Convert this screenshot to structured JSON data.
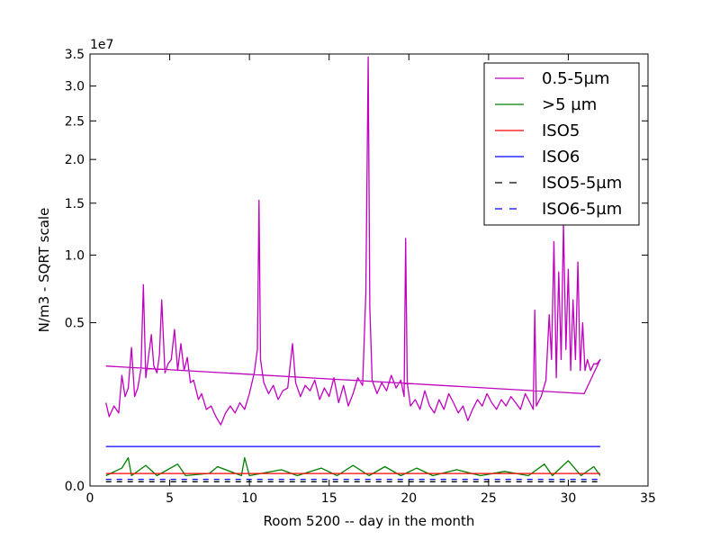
{
  "chart_data": {
    "type": "line",
    "title": "",
    "xlabel": "Room 5200 -- day in the month",
    "ylabel": "N/m3 - SQRT scale",
    "y_scale": "sqrt",
    "y_offset_label": "1e7",
    "xlim": [
      0,
      35
    ],
    "ylim": [
      0,
      35000000
    ],
    "x_ticks": [
      0,
      5,
      10,
      15,
      20,
      25,
      30,
      35
    ],
    "x_tick_labels": [
      "0",
      "5",
      "10",
      "15",
      "20",
      "25",
      "30",
      "35"
    ],
    "y_ticks": [
      0,
      5000000,
      10000000,
      15000000,
      20000000,
      25000000,
      30000000,
      35000000
    ],
    "y_tick_labels": [
      "0.0",
      "0.5",
      "1.0",
      "1.5",
      "2.0",
      "2.5",
      "3.0",
      "3.5"
    ],
    "grid": false,
    "legend_position": "top-right",
    "series": [
      {
        "name": "0.5-5µm",
        "color": "#bf00bf",
        "style": "solid",
        "points": [
          [
            1.0,
            1300000
          ],
          [
            1.2,
            900000
          ],
          [
            1.5,
            1200000
          ],
          [
            1.8,
            1000000
          ],
          [
            2.0,
            2300000
          ],
          [
            2.2,
            1500000
          ],
          [
            2.4,
            1800000
          ],
          [
            2.6,
            3600000
          ],
          [
            2.8,
            1500000
          ],
          [
            3.0,
            1800000
          ],
          [
            3.2,
            2600000
          ],
          [
            3.35,
            7600000
          ],
          [
            3.5,
            2200000
          ],
          [
            3.7,
            3300000
          ],
          [
            3.85,
            4300000
          ],
          [
            4.0,
            2700000
          ],
          [
            4.2,
            2400000
          ],
          [
            4.35,
            3200000
          ],
          [
            4.5,
            6500000
          ],
          [
            4.7,
            2400000
          ],
          [
            4.9,
            2800000
          ],
          [
            5.1,
            3000000
          ],
          [
            5.3,
            4600000
          ],
          [
            5.5,
            2500000
          ],
          [
            5.7,
            3800000
          ],
          [
            5.9,
            2500000
          ],
          [
            6.1,
            3100000
          ],
          [
            6.3,
            2000000
          ],
          [
            6.5,
            2100000
          ],
          [
            6.8,
            1400000
          ],
          [
            7.0,
            1600000
          ],
          [
            7.3,
            1100000
          ],
          [
            7.6,
            1200000
          ],
          [
            7.9,
            900000
          ],
          [
            8.2,
            700000
          ],
          [
            8.5,
            1000000
          ],
          [
            8.8,
            1200000
          ],
          [
            9.1,
            1000000
          ],
          [
            9.4,
            1300000
          ],
          [
            9.7,
            1100000
          ],
          [
            10.0,
            1600000
          ],
          [
            10.3,
            2400000
          ],
          [
            10.5,
            3500000
          ],
          [
            10.6,
            15300000
          ],
          [
            10.7,
            3000000
          ],
          [
            10.9,
            2000000
          ],
          [
            11.2,
            1600000
          ],
          [
            11.5,
            1900000
          ],
          [
            11.8,
            1400000
          ],
          [
            12.1,
            1700000
          ],
          [
            12.4,
            1800000
          ],
          [
            12.7,
            3800000
          ],
          [
            12.9,
            2000000
          ],
          [
            13.2,
            1500000
          ],
          [
            13.5,
            1900000
          ],
          [
            13.8,
            1700000
          ],
          [
            14.1,
            2100000
          ],
          [
            14.4,
            1400000
          ],
          [
            14.7,
            1800000
          ],
          [
            15.0,
            1500000
          ],
          [
            15.3,
            2200000
          ],
          [
            15.6,
            1300000
          ],
          [
            15.9,
            1900000
          ],
          [
            16.2,
            1200000
          ],
          [
            16.5,
            1600000
          ],
          [
            16.8,
            2200000
          ],
          [
            17.1,
            1900000
          ],
          [
            17.3,
            7000000
          ],
          [
            17.45,
            34500000
          ],
          [
            17.55,
            6000000
          ],
          [
            17.7,
            2100000
          ],
          [
            18.0,
            1600000
          ],
          [
            18.3,
            2000000
          ],
          [
            18.6,
            1700000
          ],
          [
            18.9,
            2300000
          ],
          [
            19.2,
            1800000
          ],
          [
            19.5,
            2100000
          ],
          [
            19.7,
            1500000
          ],
          [
            19.8,
            11500000
          ],
          [
            19.9,
            2000000
          ],
          [
            20.1,
            1200000
          ],
          [
            20.4,
            1400000
          ],
          [
            20.7,
            1100000
          ],
          [
            21.0,
            1700000
          ],
          [
            21.3,
            1200000
          ],
          [
            21.6,
            1000000
          ],
          [
            21.9,
            1400000
          ],
          [
            22.2,
            1100000
          ],
          [
            22.5,
            1600000
          ],
          [
            22.8,
            1300000
          ],
          [
            23.1,
            1000000
          ],
          [
            23.4,
            1200000
          ],
          [
            23.7,
            800000
          ],
          [
            24.0,
            1100000
          ],
          [
            24.3,
            1400000
          ],
          [
            24.6,
            1200000
          ],
          [
            24.9,
            1600000
          ],
          [
            25.2,
            1300000
          ],
          [
            25.5,
            1100000
          ],
          [
            25.8,
            1400000
          ],
          [
            26.1,
            1200000
          ],
          [
            26.4,
            1500000
          ],
          [
            26.7,
            1300000
          ],
          [
            27.0,
            1100000
          ],
          [
            27.3,
            1600000
          ],
          [
            27.6,
            1300000
          ],
          [
            27.8,
            1100000
          ],
          [
            27.9,
            5800000
          ],
          [
            28.0,
            1200000
          ],
          [
            28.3,
            1500000
          ],
          [
            28.6,
            2100000
          ],
          [
            28.8,
            5500000
          ],
          [
            28.95,
            3000000
          ],
          [
            29.1,
            11200000
          ],
          [
            29.25,
            2200000
          ],
          [
            29.4,
            8600000
          ],
          [
            29.55,
            3000000
          ],
          [
            29.7,
            12900000
          ],
          [
            29.85,
            3500000
          ],
          [
            30.0,
            8800000
          ],
          [
            30.15,
            2500000
          ],
          [
            30.3,
            6500000
          ],
          [
            30.45,
            3000000
          ],
          [
            30.6,
            9400000
          ],
          [
            30.75,
            2500000
          ],
          [
            30.9,
            5000000
          ],
          [
            31.05,
            2500000
          ],
          [
            31.2,
            3000000
          ],
          [
            31.4,
            2500000
          ],
          [
            31.6,
            2800000
          ],
          [
            31.8,
            2800000
          ],
          [
            32.0,
            3000000
          ],
          [
            31.0,
            1600000
          ],
          [
            1.0,
            2700000
          ]
        ]
      },
      {
        "name": ">5 µm",
        "color": "#008000",
        "style": "solid",
        "points": [
          [
            1.0,
            20000
          ],
          [
            2.0,
            60000
          ],
          [
            2.4,
            150000
          ],
          [
            2.6,
            20000
          ],
          [
            3.5,
            80000
          ],
          [
            4.2,
            20000
          ],
          [
            5.5,
            90000
          ],
          [
            6.0,
            20000
          ],
          [
            7.5,
            30000
          ],
          [
            8.0,
            70000
          ],
          [
            9.5,
            20000
          ],
          [
            9.7,
            150000
          ],
          [
            10.0,
            20000
          ],
          [
            12.0,
            50000
          ],
          [
            13.0,
            20000
          ],
          [
            14.5,
            60000
          ],
          [
            15.5,
            20000
          ],
          [
            16.5,
            80000
          ],
          [
            17.5,
            20000
          ],
          [
            18.5,
            70000
          ],
          [
            19.5,
            20000
          ],
          [
            20.5,
            60000
          ],
          [
            21.5,
            20000
          ],
          [
            23.0,
            50000
          ],
          [
            24.5,
            20000
          ],
          [
            26.0,
            40000
          ],
          [
            27.5,
            20000
          ],
          [
            28.5,
            90000
          ],
          [
            29.0,
            20000
          ],
          [
            30.0,
            120000
          ],
          [
            30.8,
            20000
          ],
          [
            31.6,
            70000
          ],
          [
            32.0,
            20000
          ]
        ]
      },
      {
        "name": "ISO5",
        "color": "#ff0000",
        "style": "solid",
        "points": [
          [
            1.0,
            29300
          ],
          [
            32.0,
            29300
          ]
        ]
      },
      {
        "name": "ISO6",
        "color": "#0000ff",
        "style": "solid",
        "points": [
          [
            1.0,
            293000
          ],
          [
            32.0,
            293000
          ]
        ]
      },
      {
        "name": "ISO5-5µm",
        "color": "#000000",
        "style": "dashed",
        "points": [
          [
            1.0,
            3520
          ],
          [
            32.0,
            3520
          ]
        ]
      },
      {
        "name": "ISO6-5µm",
        "color": "#0000ff",
        "style": "dashed",
        "points": [
          [
            1.0,
            8320
          ],
          [
            32.0,
            8320
          ]
        ]
      }
    ]
  }
}
